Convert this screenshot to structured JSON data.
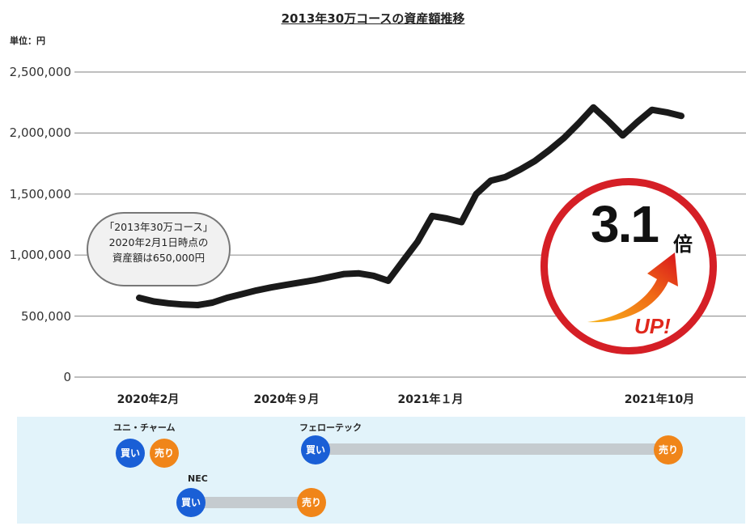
{
  "chart_data": {
    "type": "line",
    "title": "2013年30万コースの資産額推移",
    "unit_label": "単位：円",
    "ylim": [
      0,
      2500000
    ],
    "y_ticks": [
      {
        "value": 2500000,
        "label": "2,500,000"
      },
      {
        "value": 2000000,
        "label": "2,000,000"
      },
      {
        "value": 1500000,
        "label": "1,500,000"
      },
      {
        "value": 1000000,
        "label": "1,000,000"
      },
      {
        "value": 500000,
        "label": "500,000"
      },
      {
        "value": 0,
        "label": "0"
      }
    ],
    "x_labels": [
      "2020年2月",
      "2020年９月",
      "2021年１月",
      "2021年10月"
    ],
    "grid": true,
    "series": [
      {
        "values": [
          650000,
          620000,
          605000,
          595000,
          590000,
          610000,
          650000,
          680000,
          710000,
          735000,
          755000,
          775000,
          795000,
          820000,
          845000,
          850000,
          830000,
          790000,
          950000,
          1110000,
          1320000,
          1300000,
          1270000,
          1500000,
          1610000,
          1640000,
          1700000,
          1770000,
          1860000,
          1960000,
          2080000,
          2210000,
          2100000,
          1980000,
          2090000,
          2190000,
          2170000,
          2140000
        ]
      }
    ],
    "annotation_lines": [
      "「2013年30万コース」",
      "2020年2月1日時点の",
      "資産額は650,000円"
    ],
    "multiplier": "3.1",
    "multiplier_unit": "倍",
    "up_label": "UP!"
  },
  "trades": {
    "buy_label": "買い",
    "sell_label": "売り",
    "stocks": [
      "ユニ・チャーム",
      "フェローテック",
      "NEC"
    ]
  },
  "colors": {
    "line": "#1a1a1a",
    "grid": "#999999",
    "circle": "#d51f26",
    "buy": "#1a5fd6",
    "sell": "#f08519",
    "panel": "#e2f3fa"
  }
}
